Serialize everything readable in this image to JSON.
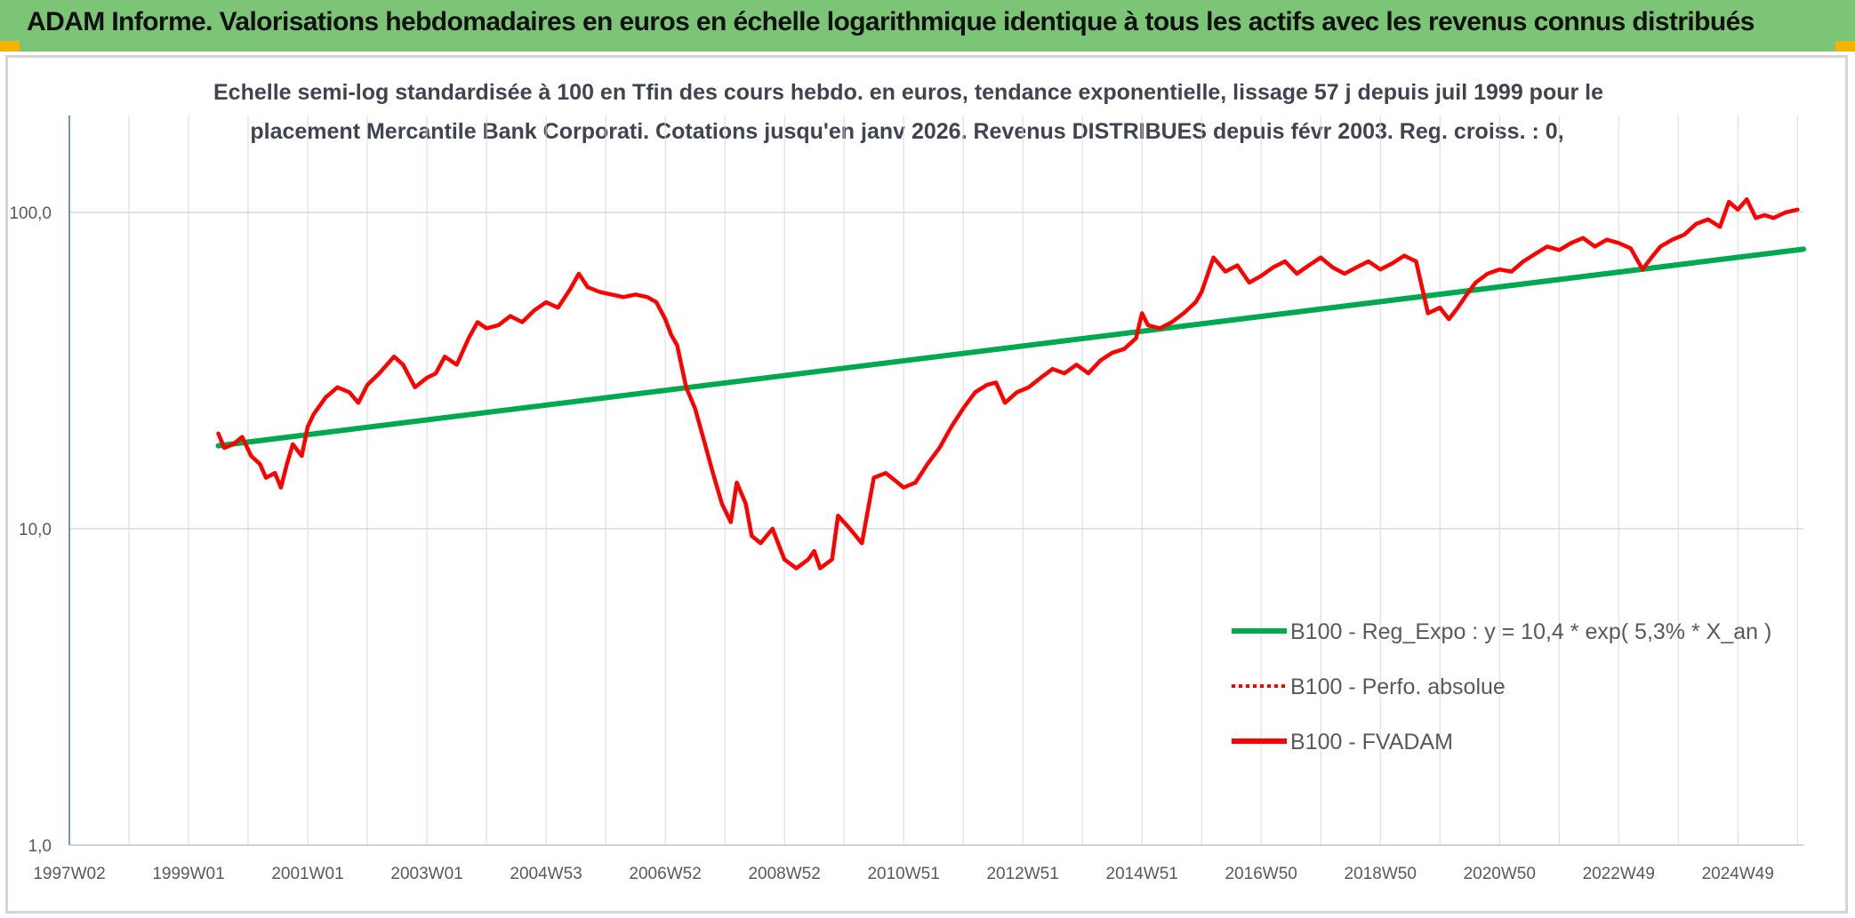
{
  "header": {
    "title": "ADAM Informe. Valorisations hebdomadaires en euros en échelle logarithmique identique à tous les actifs avec les revenus connus distribués"
  },
  "colors": {
    "header_bg": "#7cc576",
    "corner_accent": "#f2b400",
    "series_fvadam": "#ff0000",
    "series_perfo": "#ff0000",
    "series_reg": "#00a84f",
    "axis": "#4472c4",
    "grid": "#d9d9d9"
  },
  "chart_data": {
    "type": "line",
    "title_line1": "Echelle semi-log standardisée à 100 en Tfin des cours hebdo. en euros, tendance exponentielle, lissage 57 j depuis juil 1999 pour le",
    "title_line2": "placement Mercantile Bank Corporati. Cotations jusqu'en janv 2026. Revenus DISTRIBUES depuis févr 2003. Reg. croiss. : 0,",
    "y_scale": "log",
    "ylim": [
      1,
      200
    ],
    "xlim": [
      1997.0,
      2026.1
    ],
    "y_ticks": [
      {
        "value": 1,
        "label": "1,0"
      },
      {
        "value": 10,
        "label": "10,0"
      },
      {
        "value": 100,
        "label": "100,0"
      }
    ],
    "x_ticks": [
      {
        "value": 1997.0,
        "label": "1997W02"
      },
      {
        "value": 1999.0,
        "label": "1999W01"
      },
      {
        "value": 2001.0,
        "label": "2001W01"
      },
      {
        "value": 2003.0,
        "label": "2003W01"
      },
      {
        "value": 2005.0,
        "label": "2004W53"
      },
      {
        "value": 2007.0,
        "label": "2006W52"
      },
      {
        "value": 2009.0,
        "label": "2008W52"
      },
      {
        "value": 2011.0,
        "label": "2010W51"
      },
      {
        "value": 2013.0,
        "label": "2012W51"
      },
      {
        "value": 2015.0,
        "label": "2014W51"
      },
      {
        "value": 2017.0,
        "label": "2016W50"
      },
      {
        "value": 2019.0,
        "label": "2018W50"
      },
      {
        "value": 2021.0,
        "label": "2020W50"
      },
      {
        "value": 2023.0,
        "label": "2022W49"
      },
      {
        "value": 2025.0,
        "label": "2024W49"
      }
    ],
    "grid": true,
    "legend_position": "bottom-right",
    "series": [
      {
        "name": "B100 - Reg_Expo : y = 10,4 * exp( 5,3% *  X_an )",
        "style": "solid",
        "color": "#00a84f",
        "x": [
          1999.5,
          2026.1
        ],
        "y": [
          18.3,
          76.5
        ]
      },
      {
        "name": "B100 - Perfo. absolue",
        "style": "dotted",
        "color": "#ff0000",
        "x": [],
        "y": []
      },
      {
        "name": "B100 - FVADAM",
        "style": "solid",
        "color": "#ff0000",
        "x": [
          1999.5,
          1999.6,
          1999.75,
          1999.9,
          2000.05,
          2000.2,
          2000.3,
          2000.45,
          2000.55,
          2000.65,
          2000.75,
          2000.9,
          2001.0,
          2001.1,
          2001.3,
          2001.5,
          2001.7,
          2001.85,
          2002.0,
          2002.2,
          2002.45,
          2002.6,
          2002.8,
          2003.0,
          2003.15,
          2003.3,
          2003.5,
          2003.7,
          2003.85,
          2004.0,
          2004.2,
          2004.4,
          2004.6,
          2004.8,
          2005.0,
          2005.2,
          2005.4,
          2005.55,
          2005.7,
          2005.9,
          2006.1,
          2006.3,
          2006.5,
          2006.7,
          2006.85,
          2007.0,
          2007.1,
          2007.2,
          2007.35,
          2007.5,
          2007.65,
          2007.8,
          2007.95,
          2008.1,
          2008.2,
          2008.35,
          2008.45,
          2008.6,
          2008.8,
          2009.0,
          2009.2,
          2009.4,
          2009.5,
          2009.6,
          2009.8,
          2009.9,
          2010.1,
          2010.3,
          2010.5,
          2010.7,
          2010.9,
          2011.0,
          2011.2,
          2011.4,
          2011.6,
          2011.8,
          2012.0,
          2012.2,
          2012.4,
          2012.55,
          2012.7,
          2012.9,
          2013.1,
          2013.3,
          2013.5,
          2013.7,
          2013.9,
          2014.1,
          2014.3,
          2014.5,
          2014.7,
          2014.9,
          2015.0,
          2015.1,
          2015.3,
          2015.5,
          2015.7,
          2015.9,
          2016.0,
          2016.2,
          2016.4,
          2016.6,
          2016.8,
          2017.0,
          2017.2,
          2017.4,
          2017.6,
          2017.8,
          2018.0,
          2018.2,
          2018.4,
          2018.6,
          2018.8,
          2019.0,
          2019.2,
          2019.4,
          2019.6,
          2019.8,
          2020.0,
          2020.15,
          2020.3,
          2020.45,
          2020.6,
          2020.8,
          2021.0,
          2021.2,
          2021.4,
          2021.6,
          2021.8,
          2022.0,
          2022.2,
          2022.4,
          2022.6,
          2022.8,
          2023.0,
          2023.2,
          2023.4,
          2023.55,
          2023.7,
          2023.9,
          2024.1,
          2024.3,
          2024.5,
          2024.7,
          2024.85,
          2025.0,
          2025.15,
          2025.3,
          2025.45,
          2025.6,
          2025.8,
          2026.0
        ],
        "y": [
          20.0,
          18.0,
          18.5,
          19.5,
          17.0,
          16.0,
          14.5,
          15.0,
          13.5,
          16.0,
          18.5,
          17.0,
          21.0,
          23.0,
          26.0,
          28.0,
          27.0,
          25.0,
          28.5,
          31.0,
          35.0,
          33.0,
          28.0,
          30.0,
          31.0,
          35.0,
          33.0,
          40.0,
          45.0,
          43.0,
          44.0,
          47.0,
          45.0,
          49.0,
          52.0,
          50.0,
          57.0,
          64.0,
          58.0,
          56.0,
          55.0,
          54.0,
          55.0,
          54.0,
          52.0,
          46.0,
          41.0,
          38.0,
          28.0,
          24.0,
          19.0,
          15.0,
          12.0,
          10.5,
          14.0,
          12.0,
          9.5,
          9.0,
          10.0,
          8.0,
          7.5,
          8.0,
          8.5,
          7.5,
          8.0,
          11.0,
          10.0,
          9.0,
          14.5,
          15.0,
          14.0,
          13.5,
          14.0,
          16.0,
          18.0,
          21.0,
          24.0,
          27.0,
          28.5,
          29.0,
          25.0,
          27.0,
          28.0,
          30.0,
          32.0,
          31.0,
          33.0,
          31.0,
          34.0,
          36.0,
          37.0,
          40.0,
          48.0,
          44.0,
          43.0,
          45.0,
          48.0,
          52.0,
          56.0,
          72.0,
          65.0,
          68.0,
          60.0,
          63.0,
          67.0,
          70.0,
          64.0,
          68.0,
          72.0,
          67.0,
          64.0,
          67.0,
          70.0,
          66.0,
          69.0,
          73.0,
          70.0,
          48.0,
          50.0,
          46.0,
          50.0,
          55.0,
          60.0,
          64.0,
          66.0,
          65.0,
          70.0,
          74.0,
          78.0,
          76.0,
          80.0,
          83.0,
          78.0,
          82.0,
          80.0,
          77.0,
          66.0,
          72.0,
          78.0,
          82.0,
          85.0,
          92.0,
          95.0,
          90.0,
          108.0,
          102.0,
          110.0,
          96.0,
          98.0,
          96.0,
          100.0,
          102.0
        ]
      }
    ]
  }
}
